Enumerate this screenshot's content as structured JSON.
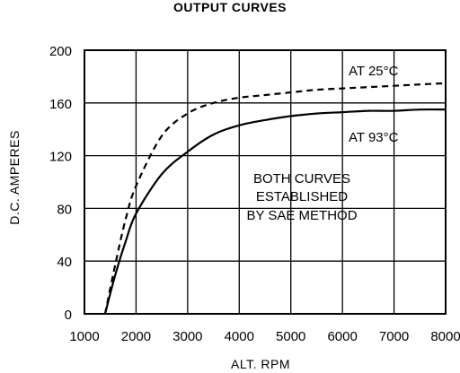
{
  "chart_data": {
    "type": "line",
    "title": "OUTPUT CURVES",
    "xlabel": "ALT. RPM",
    "ylabel": "D.C. AMPERES",
    "xlim": [
      1000,
      8000
    ],
    "ylim": [
      0,
      200
    ],
    "x_ticks": [
      1000,
      2000,
      3000,
      4000,
      5000,
      6000,
      7000,
      8000
    ],
    "y_ticks": [
      0,
      40,
      80,
      120,
      160,
      200
    ],
    "grid": true,
    "series": [
      {
        "name": "AT 25°C",
        "style": "dashed",
        "x": [
          1400,
          1600,
          1800,
          2000,
          2500,
          3000,
          3500,
          4000,
          4500,
          5000,
          5500,
          6000,
          6500,
          7000,
          7500,
          8000
        ],
        "y": [
          0,
          38,
          72,
          97,
          135,
          152,
          160,
          164,
          166,
          168,
          170,
          171,
          172,
          173,
          174,
          175
        ]
      },
      {
        "name": "AT 93°C",
        "style": "solid",
        "x": [
          1400,
          1600,
          1800,
          2000,
          2500,
          3000,
          3500,
          4000,
          4500,
          5000,
          5500,
          6000,
          6500,
          7000,
          7500,
          8000
        ],
        "y": [
          0,
          30,
          55,
          76,
          106,
          123,
          136,
          143,
          147,
          150,
          152,
          153,
          154,
          154,
          155,
          155
        ]
      }
    ],
    "annotations": [
      "BOTH CURVES",
      "ESTABLISHED",
      "BY SAE METHOD"
    ]
  },
  "colors": {
    "line": "#000000",
    "background": "#ffffff"
  }
}
